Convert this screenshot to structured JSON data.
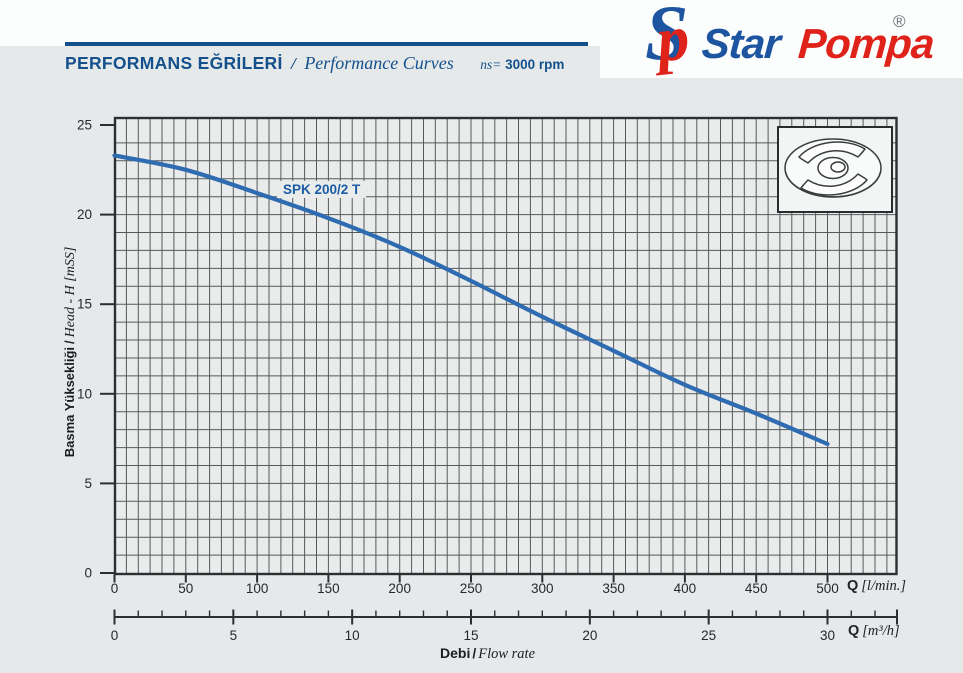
{
  "colors": {
    "page_bg": "#e6e9ea",
    "plot_bg": "#e9eceb",
    "header_blue": "#14508c",
    "brand_blue": "#1d55a0",
    "brand_red": "#e0231a",
    "curve_blue": "#2e6bb0",
    "curve_label_blue": "#1c5ca4",
    "grid_gray": "#565a5d",
    "axis_dark": "#2c2f31"
  },
  "header": {
    "title_tr": "PERFORMANS EĞRİLERİ",
    "sep": "/",
    "title_en": "Performance Curves",
    "rpm_prefix": "ns=",
    "rpm_value": "3000 rpm"
  },
  "logo": {
    "mark_letter_s": "S",
    "mark_letter_p": "p",
    "word1": "Star",
    "word2": "Pompa",
    "registered": "®"
  },
  "icons": {
    "logo_mark": "sp-monogram-icon",
    "impeller": "impeller-line-drawing-icon"
  },
  "chart_data": {
    "type": "line",
    "title": "",
    "legend_position": "label-on-curve",
    "grid": {
      "on": true,
      "style": "graph-paper",
      "minor_x_value_step": 8.333,
      "minor_y_value_step": 1
    },
    "series": [
      {
        "name": "SPK 200/2 T",
        "x": [
          0,
          50,
          100,
          150,
          200,
          250,
          300,
          350,
          400,
          450,
          500
        ],
        "y": [
          23.3,
          22.5,
          21.2,
          19.8,
          18.2,
          16.3,
          14.3,
          12.4,
          10.5,
          8.9,
          7.2
        ]
      }
    ],
    "x_axis": {
      "unit_bold": "Q",
      "unit": "[l/min.]",
      "ticks": [
        0,
        50,
        100,
        150,
        200,
        250,
        300,
        350,
        400,
        450,
        500
      ],
      "range": [
        0,
        548
      ]
    },
    "x_axis_secondary": {
      "unit_bold": "Q",
      "unit": "[m³/h]",
      "ticks": [
        0,
        5,
        10,
        15,
        20,
        25,
        30
      ],
      "minor_step": 1,
      "range": [
        0,
        32.9
      ]
    },
    "y_axis": {
      "label_bold": "Basma Yüksekliği",
      "label_sep": "/",
      "label_italic": "Head - H [mSS]",
      "ticks": [
        0,
        5,
        10,
        15,
        20,
        25
      ],
      "range": [
        0,
        25.4
      ]
    },
    "flow_label": {
      "bold": "Debi",
      "sep": "/",
      "italic": "Flow rate"
    }
  }
}
